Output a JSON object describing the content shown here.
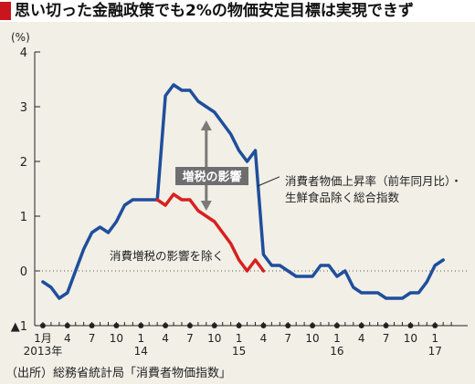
{
  "title": "思い切った金融政策でも2%の物価安定目標は実現できず",
  "source": "（出所）総務省統計局「消費者物価指数」",
  "colors": {
    "main": "#1f4e9c",
    "ex_tax": "#d7211f",
    "title_mark": "#c9161d",
    "arrow": "#7a7a7a",
    "box": "#6e6e6e"
  },
  "chart_data": {
    "type": "line",
    "ylabel": "(%)",
    "ylim": [
      -1,
      4
    ],
    "yticks": [
      -1,
      0,
      1,
      2,
      3,
      4
    ],
    "ytick_labels": [
      "▲1",
      "0",
      "1",
      "2",
      "3",
      "4"
    ],
    "xlim": [
      0,
      53
    ],
    "x_major": [
      {
        "x": 1,
        "label": "1月"
      },
      {
        "x": 4,
        "label": "4"
      },
      {
        "x": 7,
        "label": "7"
      },
      {
        "x": 10,
        "label": "10"
      },
      {
        "x": 13,
        "label": "1"
      },
      {
        "x": 16,
        "label": "4"
      },
      {
        "x": 19,
        "label": "7"
      },
      {
        "x": 22,
        "label": "10"
      },
      {
        "x": 25,
        "label": "1"
      },
      {
        "x": 28,
        "label": "4"
      },
      {
        "x": 31,
        "label": "7"
      },
      {
        "x": 34,
        "label": "10"
      },
      {
        "x": 37,
        "label": "1"
      },
      {
        "x": 40,
        "label": "4"
      },
      {
        "x": 43,
        "label": "7"
      },
      {
        "x": 46,
        "label": "10"
      },
      {
        "x": 49,
        "label": "1"
      }
    ],
    "year_labels": [
      {
        "x": 1,
        "label": "2013年"
      },
      {
        "x": 13,
        "label": "14"
      },
      {
        "x": 25,
        "label": "15"
      },
      {
        "x": 37,
        "label": "16"
      },
      {
        "x": 49,
        "label": "17"
      }
    ],
    "series": [
      {
        "name": "消費者物価上昇率（前年同月比）・生鮮食品除く総合指数",
        "x": [
          1,
          2,
          3,
          4,
          5,
          6,
          7,
          8,
          9,
          10,
          11,
          12,
          13,
          14,
          15,
          16,
          17,
          18,
          19,
          20,
          21,
          22,
          23,
          24,
          25,
          26,
          27,
          28,
          29,
          30,
          31,
          32,
          33,
          34,
          35,
          36,
          37,
          38,
          39,
          40,
          41,
          42,
          43,
          44,
          45,
          46,
          47,
          48,
          49,
          50
        ],
        "values": [
          -0.2,
          -0.3,
          -0.5,
          -0.4,
          0.0,
          0.4,
          0.7,
          0.8,
          0.7,
          0.9,
          1.2,
          1.3,
          1.3,
          1.3,
          1.3,
          3.2,
          3.4,
          3.3,
          3.3,
          3.1,
          3.0,
          2.9,
          2.7,
          2.5,
          2.2,
          2.0,
          2.2,
          0.3,
          0.1,
          0.1,
          0.0,
          -0.1,
          -0.1,
          -0.1,
          0.1,
          0.1,
          -0.1,
          0.0,
          -0.3,
          -0.4,
          -0.4,
          -0.4,
          -0.5,
          -0.5,
          -0.5,
          -0.4,
          -0.4,
          -0.2,
          0.1,
          0.2
        ]
      },
      {
        "name": "消費増税の影響を除く",
        "x": [
          15,
          16,
          17,
          18,
          19,
          20,
          21,
          22,
          23,
          24,
          25,
          26,
          27,
          28
        ],
        "values": [
          1.3,
          1.2,
          1.4,
          1.3,
          1.3,
          1.1,
          1.0,
          0.9,
          0.7,
          0.5,
          0.2,
          0.0,
          0.2,
          0.0
        ]
      }
    ],
    "annotations": {
      "tax_box": "増税の影響",
      "main_label_line1": "消費者物価上昇率（前年同月比）・",
      "main_label_line2": "生鮮食品除く総合指数",
      "ex_tax_label": "消費増税の影響を除く"
    },
    "grid": false
  }
}
